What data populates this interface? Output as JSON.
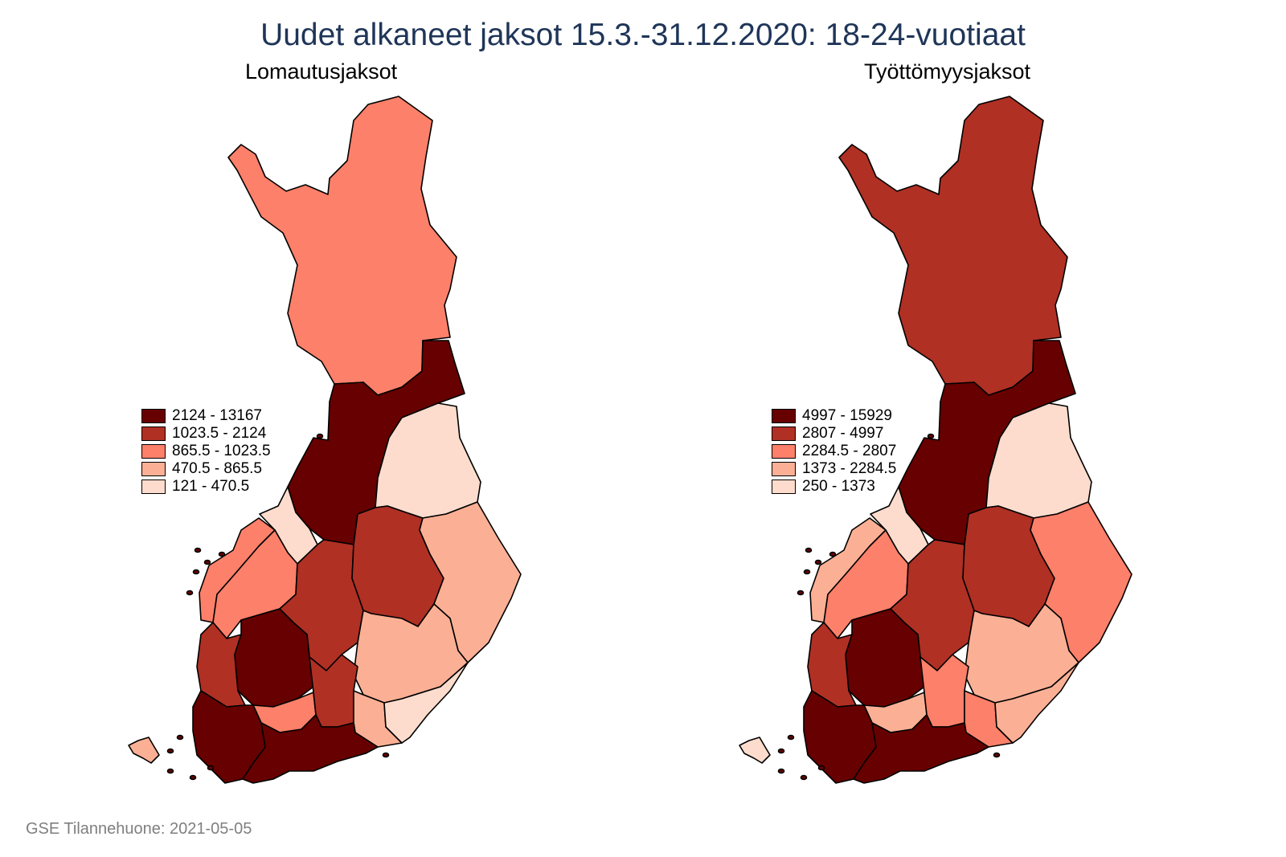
{
  "title": "Uudet alkaneet jaksot 15.3.-31.12.2020: 18-24-vuotiaat",
  "colors": {
    "class5": "#670000",
    "class4": "#b03024",
    "class3": "#fc806a",
    "class2": "#fbb095",
    "class1": "#fddccd",
    "title": "#1f3558",
    "footer": "#7f7f7f"
  },
  "maps": [
    {
      "subtitle": "Lomautusjaksot",
      "legend": [
        {
          "range": "2124  -  13167",
          "class": 5
        },
        {
          "range": "1023.5  -  2124",
          "class": 4
        },
        {
          "range": "865.5  -  1023.5",
          "class": 3
        },
        {
          "range": "470.5  -  865.5",
          "class": 2
        },
        {
          "range": "121  -  470.5",
          "class": 1
        }
      ],
      "region_classes": {
        "lapland": 3,
        "northern-ostrobothnia": 5,
        "kainuu": 1,
        "central-ostrobothnia": 1,
        "ostrobothnia": 3,
        "south-ostrobothnia": 3,
        "central-finland": 4,
        "northern-savonia": 4,
        "north-karelia": 2,
        "southern-savonia": 2,
        "satakunta": 4,
        "pirkanmaa": 5,
        "kanta-hame": 3,
        "paijat-hame": 4,
        "kymenlaakso": 2,
        "south-karelia": 1,
        "southwest-finland": 5,
        "uusimaa": 5,
        "aland": 2
      }
    },
    {
      "subtitle": "Työttömyysjaksot",
      "legend": [
        {
          "range": "4997  -  15929",
          "class": 5
        },
        {
          "range": "2807  -  4997",
          "class": 4
        },
        {
          "range": "2284.5  -  2807",
          "class": 3
        },
        {
          "range": "1373  -  2284.5",
          "class": 2
        },
        {
          "range": "250  -  1373",
          "class": 1
        }
      ],
      "region_classes": {
        "lapland": 4,
        "northern-ostrobothnia": 5,
        "kainuu": 1,
        "central-ostrobothnia": 1,
        "ostrobothnia": 2,
        "south-ostrobothnia": 3,
        "central-finland": 4,
        "northern-savonia": 4,
        "north-karelia": 3,
        "southern-savonia": 2,
        "satakunta": 4,
        "pirkanmaa": 5,
        "kanta-hame": 2,
        "paijat-hame": 3,
        "kymenlaakso": 3,
        "south-karelia": 2,
        "southwest-finland": 5,
        "uusimaa": 5,
        "aland": 1
      }
    }
  ],
  "footer": "GSE Tilannehuone: 2021-05-05"
}
